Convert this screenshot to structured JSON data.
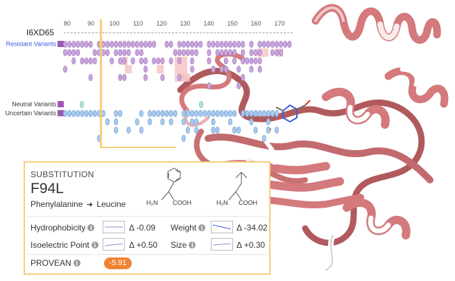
{
  "axis": {
    "ticks": [
      "80",
      "90",
      "100",
      "110",
      "120",
      "130",
      "140",
      "150",
      "160",
      "170"
    ]
  },
  "sequence": {
    "name": "I6XD65"
  },
  "tracks": [
    {
      "label": "Resistant Variants",
      "color": "#9b59b6",
      "label_color": "#3b5bdb"
    },
    {
      "label": "Neutral Variants",
      "color": "#9b59b6",
      "label_color": "#333333"
    },
    {
      "label": "Uncertain Variants",
      "color": "#9b59b6",
      "label_color": "#333333"
    }
  ],
  "variant_colors": {
    "resistant": "#c9a6dd",
    "resistant_highlight": "#f5c0c0",
    "uncertain": "#a9cbed",
    "neutral": "#b5e0d6"
  },
  "detail": {
    "heading": "SUBSTITUTION",
    "variant": "F94L",
    "from_residue": "Phenylalanine",
    "to_residue": "Leucine",
    "properties": {
      "hydrophobicity": {
        "label": "Hydrophobicity",
        "value": "Δ -0.09"
      },
      "weight": {
        "label": "Weight",
        "value": "Δ -34.02"
      },
      "isoelectric": {
        "label": "Isoelectric Point",
        "value": "Δ +0.50"
      },
      "size": {
        "label": "Size",
        "value": "Δ +0.30"
      }
    },
    "provean": {
      "label": "PROVEAN",
      "score": "-5.91",
      "color": "#ee8333"
    },
    "structure_labels": {
      "amine": "H₂N",
      "acid": "COOH"
    }
  },
  "structure_view": {
    "ribbon_color": "#d4797c",
    "helix_color": "#ffffff",
    "accent": "#f6cd7a"
  }
}
